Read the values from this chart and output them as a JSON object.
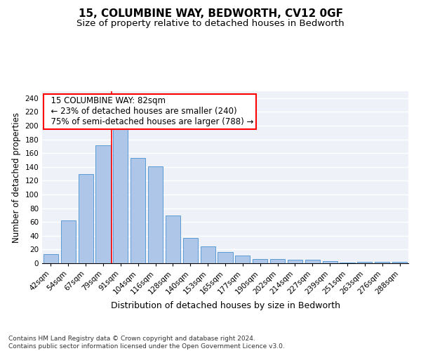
{
  "title": "15, COLUMBINE WAY, BEDWORTH, CV12 0GF",
  "subtitle": "Size of property relative to detached houses in Bedworth",
  "xlabel": "Distribution of detached houses by size in Bedworth",
  "ylabel": "Number of detached properties",
  "categories": [
    "42sqm",
    "54sqm",
    "67sqm",
    "79sqm",
    "91sqm",
    "104sqm",
    "116sqm",
    "128sqm",
    "140sqm",
    "153sqm",
    "165sqm",
    "177sqm",
    "190sqm",
    "202sqm",
    "214sqm",
    "227sqm",
    "239sqm",
    "251sqm",
    "263sqm",
    "276sqm",
    "288sqm"
  ],
  "values": [
    13,
    62,
    130,
    171,
    197,
    153,
    141,
    69,
    37,
    24,
    16,
    11,
    6,
    6,
    5,
    5,
    3,
    1,
    2,
    2,
    2
  ],
  "bar_color": "#aec6e8",
  "bar_edge_color": "#5b9bd5",
  "red_line_x": 3.5,
  "annotation_text": "  15 COLUMBINE WAY: 82sqm\n  ← 23% of detached houses are smaller (240)\n  75% of semi-detached houses are larger (788) →",
  "annotation_box_color": "white",
  "annotation_box_edge_color": "red",
  "ylim": [
    0,
    250
  ],
  "yticks": [
    0,
    20,
    40,
    60,
    80,
    100,
    120,
    140,
    160,
    180,
    200,
    220,
    240
  ],
  "footnote": "Contains HM Land Registry data © Crown copyright and database right 2024.\nContains public sector information licensed under the Open Government Licence v3.0.",
  "background_color": "#eef2f8",
  "grid_color": "white",
  "title_fontsize": 11,
  "subtitle_fontsize": 9.5,
  "tick_fontsize": 7.5,
  "ylabel_fontsize": 8.5,
  "xlabel_fontsize": 9,
  "annotation_fontsize": 8.5
}
